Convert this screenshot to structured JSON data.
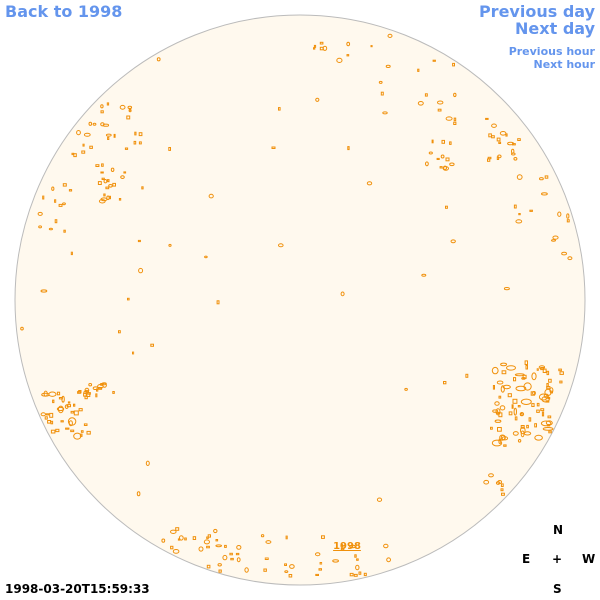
{
  "nav": {
    "back_label": "Back to 1998",
    "prev_day_label": "Previous day",
    "next_day_label": "Next day",
    "prev_hour_label": "Previous hour",
    "next_hour_label": "Next hour"
  },
  "disk": {
    "year_label": "1998",
    "fill_color": "#FFF9EE",
    "outline_color": "#BBBBBB",
    "feature_color": "#F0900A"
  },
  "timestamp": "1998-03-20T15:59:33",
  "compass": {
    "north": "N",
    "east": "E",
    "center": "+",
    "west": "W",
    "south": "S"
  },
  "link_color": "#6495ED"
}
